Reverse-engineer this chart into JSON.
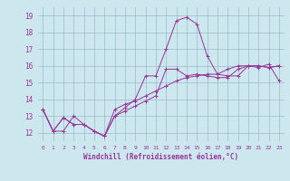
{
  "title": "",
  "xlabel": "Windchill (Refroidissement éolien,°C)",
  "ylabel": "",
  "bg_color": "#cce8ee",
  "line_color": "#993399",
  "grid_color": "#99bbcc",
  "x_ticks": [
    0,
    1,
    2,
    3,
    4,
    5,
    6,
    7,
    8,
    9,
    10,
    11,
    12,
    13,
    14,
    15,
    16,
    17,
    18,
    19,
    20,
    21,
    22,
    23
  ],
  "y_ticks": [
    12,
    13,
    14,
    15,
    16,
    17,
    18,
    19
  ],
  "xlim": [
    -0.5,
    23.5
  ],
  "ylim": [
    11.5,
    19.5
  ],
  "series": [
    [
      13.4,
      12.1,
      12.1,
      13.0,
      12.5,
      12.1,
      11.8,
      13.4,
      13.7,
      13.9,
      14.2,
      14.5,
      14.8,
      15.1,
      15.3,
      15.4,
      15.5,
      15.5,
      15.8,
      16.0,
      16.0,
      15.9,
      16.1,
      15.1
    ],
    [
      13.4,
      12.1,
      12.9,
      12.5,
      12.5,
      12.1,
      11.8,
      13.0,
      13.5,
      14.0,
      15.4,
      15.4,
      17.0,
      18.7,
      18.9,
      18.5,
      16.6,
      15.5,
      15.4,
      15.4,
      16.0,
      16.0,
      15.9,
      16.0
    ],
    [
      13.4,
      12.1,
      12.9,
      12.5,
      12.5,
      12.1,
      11.8,
      13.0,
      13.3,
      13.6,
      13.9,
      14.2,
      15.8,
      15.8,
      15.4,
      15.5,
      15.4,
      15.3,
      15.3,
      15.8,
      16.0,
      16.0,
      15.9,
      16.0
    ]
  ]
}
